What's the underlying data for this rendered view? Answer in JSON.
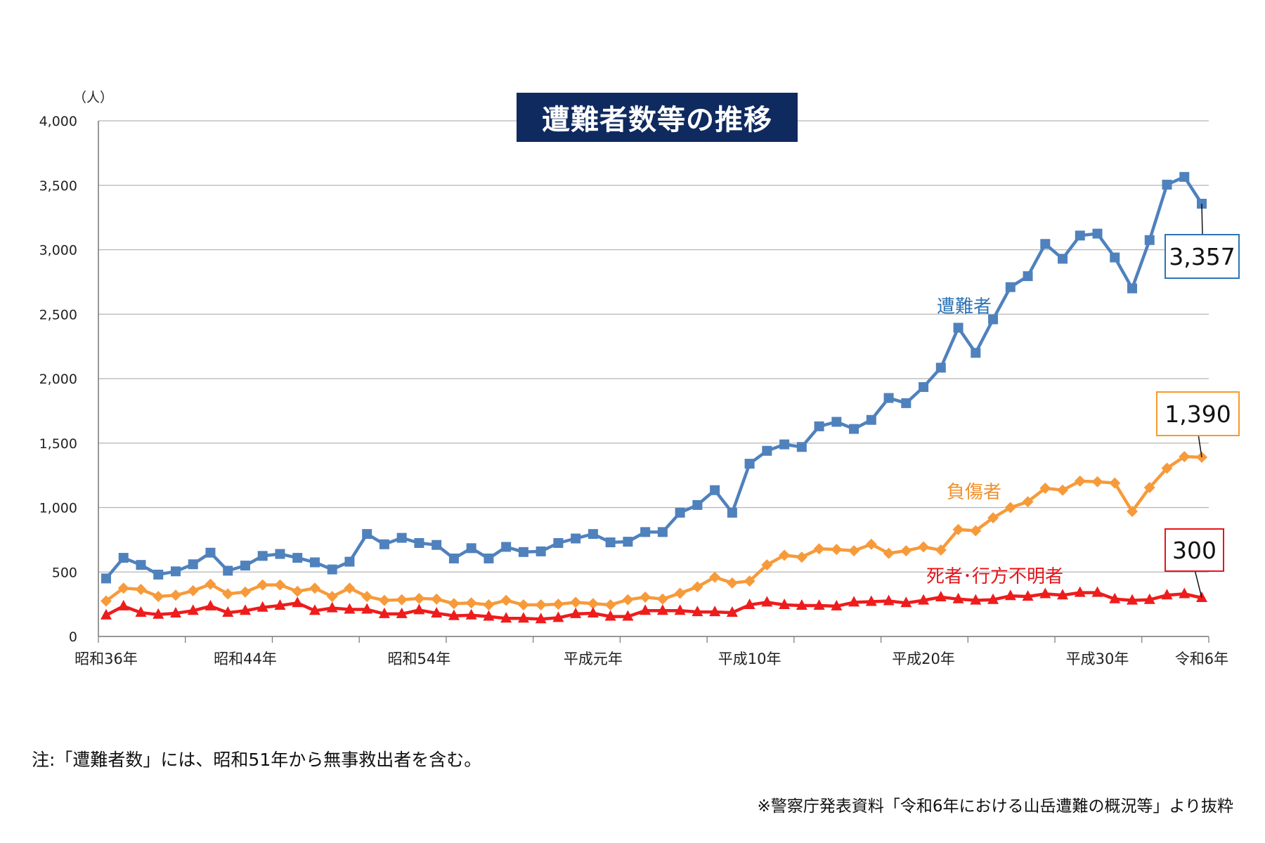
{
  "chart_data": {
    "type": "line",
    "title": "遭難者数等の推移",
    "y_unit": "（人）",
    "ylim": [
      0,
      4000
    ],
    "y_ticks": [
      "0",
      "500",
      "1,000",
      "1,500",
      "2,000",
      "2,500",
      "3,000",
      "3,500",
      "4,000"
    ],
    "grid": true,
    "x_tick_labels": [
      {
        "index": 0,
        "label": "昭和36年"
      },
      {
        "index": 8,
        "label": "昭和44年"
      },
      {
        "index": 18,
        "label": "昭和54年"
      },
      {
        "index": 28,
        "label": "平成元年"
      },
      {
        "index": 37,
        "label": "平成10年"
      },
      {
        "index": 47,
        "label": "平成20年"
      },
      {
        "index": 57,
        "label": "平成30年"
      },
      {
        "index": 63,
        "label": "令和6年"
      }
    ],
    "series": [
      {
        "name": "遭難者",
        "color": "#4f81bd",
        "marker": "square",
        "callout": "3,357",
        "values": [
          450,
          610,
          555,
          480,
          505,
          560,
          650,
          510,
          550,
          625,
          640,
          610,
          575,
          520,
          580,
          795,
          715,
          765,
          725,
          710,
          605,
          685,
          605,
          695,
          655,
          660,
          725,
          760,
          795,
          730,
          735,
          810,
          810,
          960,
          1020,
          1135,
          960,
          1340,
          1440,
          1490,
          1470,
          1630,
          1665,
          1610,
          1680,
          1850,
          1810,
          1935,
          2085,
          2395,
          2200,
          2460,
          2710,
          2795,
          3045,
          2930,
          3110,
          3125,
          2940,
          2700,
          3075,
          3505,
          3565,
          3357
        ]
      },
      {
        "name": "負傷者",
        "color": "#f79a3a",
        "marker": "diamond",
        "callout": "1,390",
        "values": [
          275,
          375,
          365,
          310,
          320,
          355,
          405,
          330,
          345,
          400,
          400,
          350,
          375,
          310,
          375,
          310,
          280,
          285,
          295,
          290,
          255,
          260,
          245,
          280,
          245,
          245,
          250,
          265,
          255,
          245,
          285,
          305,
          290,
          335,
          385,
          460,
          415,
          430,
          555,
          630,
          615,
          680,
          675,
          665,
          715,
          645,
          665,
          695,
          670,
          830,
          820,
          920,
          1000,
          1045,
          1150,
          1135,
          1205,
          1200,
          1190,
          970,
          1155,
          1305,
          1395,
          1390
        ]
      },
      {
        "name": "死者･行方不明者",
        "color": "#ee1c1c",
        "marker": "triangle",
        "callout": "300",
        "values": [
          165,
          235,
          185,
          170,
          180,
          200,
          235,
          185,
          200,
          225,
          240,
          260,
          200,
          220,
          210,
          210,
          175,
          175,
          205,
          180,
          160,
          165,
          155,
          140,
          140,
          135,
          145,
          175,
          180,
          155,
          155,
          200,
          200,
          200,
          190,
          190,
          185,
          245,
          265,
          245,
          240,
          240,
          235,
          265,
          270,
          275,
          260,
          280,
          305,
          290,
          280,
          285,
          315,
          310,
          330,
          320,
          340,
          340,
          290,
          280,
          285,
          320,
          330,
          300
        ]
      }
    ]
  },
  "note": "注:「遭難者数」には、昭和51年から無事救出者を含む。",
  "source": "※警察庁発表資料「令和6年における山岳遭難の概況等」より抜粋"
}
